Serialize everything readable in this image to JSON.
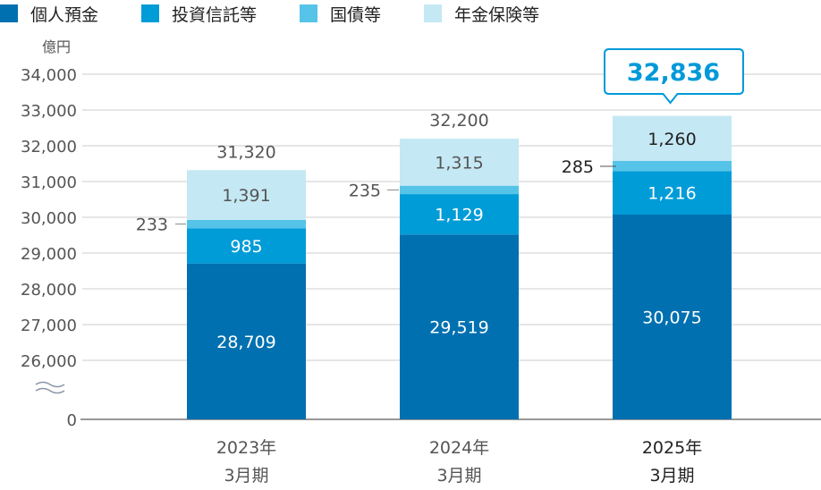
{
  "chart_data": {
    "type": "bar",
    "stacked": true,
    "unit_label": "億円",
    "categories": [
      [
        "2023年",
        "3月期"
      ],
      [
        "2024年",
        "3月期"
      ],
      [
        "2025年",
        "3月期"
      ]
    ],
    "series": [
      {
        "name": "個人預金",
        "color": "#0070b0",
        "values": [
          28709,
          29519,
          30075
        ]
      },
      {
        "name": "投資信託等",
        "color": "#009cd8",
        "values": [
          985,
          1129,
          1216
        ]
      },
      {
        "name": "国債等",
        "color": "#55c4e8",
        "values": [
          233,
          235,
          285
        ]
      },
      {
        "name": "年金保険等",
        "color": "#c4e8f4",
        "values": [
          1391,
          1315,
          1260
        ]
      }
    ],
    "totals": [
      "31,320",
      "32,200",
      "32,836"
    ],
    "value_labels": [
      [
        "28,709",
        "985",
        "233",
        "1,391"
      ],
      [
        "29,519",
        "1,129",
        "235",
        "1,315"
      ],
      [
        "30,075",
        "1,216",
        "285",
        "1,260"
      ]
    ],
    "highlight_total_index": 2,
    "y_ticks": [
      {
        "v": 0,
        "l": "0"
      },
      {
        "v": 26000,
        "l": "26,000"
      },
      {
        "v": 27000,
        "l": "27,000"
      },
      {
        "v": 28000,
        "l": "28,000"
      },
      {
        "v": 29000,
        "l": "29,000"
      },
      {
        "v": 30000,
        "l": "30,000"
      },
      {
        "v": 31000,
        "l": "31,000"
      },
      {
        "v": 32000,
        "l": "32,000"
      },
      {
        "v": 33000,
        "l": "33,000"
      },
      {
        "v": 34000,
        "l": "34,000"
      }
    ],
    "ylim": [
      26000,
      34000
    ],
    "axis_break": true,
    "grid": true,
    "legend_position": "top-left"
  }
}
